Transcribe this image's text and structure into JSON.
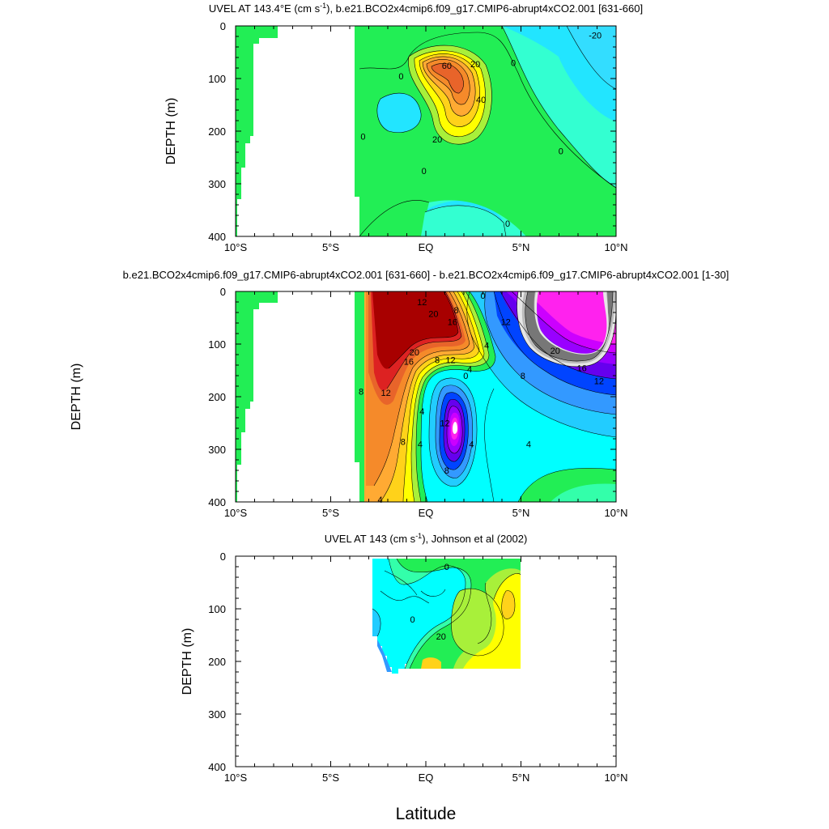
{
  "chart_data": [
    {
      "type": "heatmap",
      "title": "UVEL AT 143.4°E (cm s⁻¹), b.e21.BCO2x4cmip6.f09_g17.CMIP6-abrupt4xCO2.001 [631-660]",
      "ylabel": "DEPTH (m)",
      "xlabel": "",
      "xlim": [
        -10,
        10
      ],
      "ylim": [
        400,
        0
      ],
      "x_ticks": [
        "10°S",
        "5°S",
        "EQ",
        "5°N",
        "10°N"
      ],
      "y_ticks": [
        "0",
        "100",
        "200",
        "300",
        "400"
      ],
      "contour_labels": [
        {
          "text": "-20",
          "x": 8.9,
          "y": 18
        },
        {
          "text": "60",
          "x": 1.1,
          "y": 75
        },
        {
          "text": "20",
          "x": 2.6,
          "y": 72
        },
        {
          "text": "0",
          "x": 4.6,
          "y": 70
        },
        {
          "text": "0",
          "x": -1.3,
          "y": 95
        },
        {
          "text": "40",
          "x": 2.9,
          "y": 140
        },
        {
          "text": "0",
          "x": -3.3,
          "y": 210
        },
        {
          "text": "20",
          "x": 0.6,
          "y": 215
        },
        {
          "text": "0",
          "x": 7.1,
          "y": 238
        },
        {
          "text": "0",
          "x": -0.1,
          "y": 275
        },
        {
          "text": "0",
          "x": 4.3,
          "y": 375
        }
      ]
    },
    {
      "type": "heatmap",
      "title": "b.e21.BCO2x4cmip6.f09_g17.CMIP6-abrupt4xCO2.001 [631-660] - b.e21.BCO2x4cmip6.f09_g17.CMIP6-abrupt4xCO2.001 [1-30]",
      "ylabel": "DEPTH (m)",
      "xlabel": "",
      "xlim": [
        -10,
        10
      ],
      "ylim": [
        400,
        0
      ],
      "x_ticks": [
        "10°S",
        "5°S",
        "EQ",
        "5°N",
        "10°N"
      ],
      "y_ticks": [
        "0",
        "100",
        "200",
        "300",
        "400"
      ],
      "contour_labels": [
        {
          "text": "12",
          "x": -0.2,
          "y": 20
        },
        {
          "text": "20",
          "x": 0.4,
          "y": 42
        },
        {
          "text": "8",
          "x": 1.6,
          "y": 35
        },
        {
          "text": "16",
          "x": 1.4,
          "y": 58
        },
        {
          "text": "0",
          "x": 3.0,
          "y": 8
        },
        {
          "text": "12",
          "x": 4.2,
          "y": 58
        },
        {
          "text": "20",
          "x": 6.8,
          "y": 112
        },
        {
          "text": "16",
          "x": 8.2,
          "y": 145
        },
        {
          "text": "12",
          "x": 9.1,
          "y": 170
        },
        {
          "text": "4",
          "x": 3.2,
          "y": 102
        },
        {
          "text": "8",
          "x": 5.1,
          "y": 160
        },
        {
          "text": "20",
          "x": -0.6,
          "y": 115
        },
        {
          "text": "16",
          "x": -0.9,
          "y": 133
        },
        {
          "text": "8",
          "x": 0.6,
          "y": 130
        },
        {
          "text": "12",
          "x": 1.3,
          "y": 130
        },
        {
          "text": "4",
          "x": 2.3,
          "y": 148
        },
        {
          "text": "0",
          "x": 2.1,
          "y": 160
        },
        {
          "text": "8",
          "x": -3.4,
          "y": 190
        },
        {
          "text": "12",
          "x": -2.1,
          "y": 192
        },
        {
          "text": "4",
          "x": -0.2,
          "y": 228
        },
        {
          "text": "12",
          "x": 1.0,
          "y": 250
        },
        {
          "text": "8",
          "x": -1.2,
          "y": 285
        },
        {
          "text": "4",
          "x": -0.3,
          "y": 290
        },
        {
          "text": "4",
          "x": 2.4,
          "y": 290
        },
        {
          "text": "4",
          "x": 5.4,
          "y": 290
        },
        {
          "text": "8",
          "x": 1.1,
          "y": 340
        },
        {
          "text": "4",
          "x": -2.4,
          "y": 395
        }
      ]
    },
    {
      "type": "heatmap",
      "title": "UVEL AT 143 (cm s⁻¹), Johnson et al (2002)",
      "ylabel": "DEPTH (m)",
      "xlabel": "Latitude",
      "xlim": [
        -10,
        10
      ],
      "ylim": [
        400,
        0
      ],
      "x_ticks": [
        "10°S",
        "5°S",
        "EQ",
        "5°N",
        "10°N"
      ],
      "y_ticks": [
        "0",
        "100",
        "200",
        "300",
        "400"
      ],
      "contour_labels": [
        {
          "text": "0",
          "x": 1.1,
          "y": 20
        },
        {
          "text": "0",
          "x": -0.7,
          "y": 120
        },
        {
          "text": "20",
          "x": 0.8,
          "y": 152
        }
      ]
    }
  ]
}
